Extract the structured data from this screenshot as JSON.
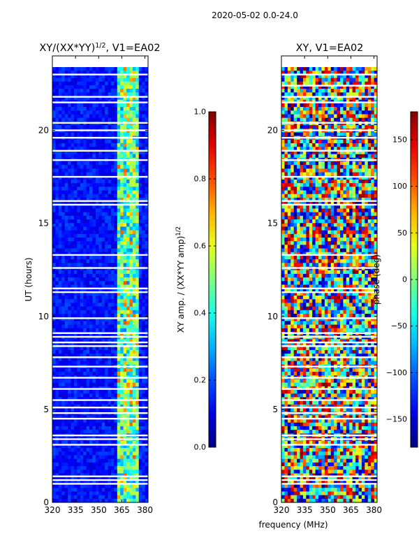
{
  "chart_data": {
    "suptitle": "2020-05-02 0.0-24.0",
    "shared_xlabel": "frequency (MHz)",
    "panels": [
      {
        "type": "heatmap",
        "title": "XY/(XX*YY)^{1/2}, V1=EA02",
        "title_main": "XY/(XX*YY)",
        "title_sup": "1/2",
        "title_tail": ", V1=EA02",
        "xlabel": "",
        "ylabel": "UT (hours)",
        "xlim": [
          320,
          382
        ],
        "ylim": [
          0,
          24
        ],
        "xticks": [
          320,
          335,
          350,
          365,
          380
        ],
        "yticks": [
          0,
          5,
          10,
          15,
          20
        ],
        "colormap": "jet",
        "blank_rows_hours": [
          23.0,
          21.8,
          21.5,
          20.4,
          20.0,
          19.6,
          18.9,
          18.4,
          17.5,
          16.2,
          16.0,
          13.3,
          12.6,
          11.5,
          11.3,
          9.9,
          9.1,
          8.9,
          8.6,
          8.4,
          7.8,
          7.3,
          6.7,
          6.1,
          5.5,
          5.1,
          4.8,
          4.5,
          3.6,
          3.4,
          3.1,
          1.4,
          1.2,
          1.0
        ],
        "colorbar": {
          "label": "XY amp. / (XX*YY amp)^{1/2}",
          "label_main": "XY amp. / (XX*YY amp)",
          "label_sup": "1/2",
          "min": 0.0,
          "max": 1.0,
          "ticks": [
            0.0,
            0.2,
            0.4,
            0.6,
            0.8,
            1.0
          ],
          "tick_labels": [
            "0.0",
            "0.2",
            "0.4",
            "0.6",
            "0.8",
            "1.0"
          ]
        }
      },
      {
        "type": "heatmap",
        "title": "XY, V1=EA02",
        "xlabel": "frequency (MHz)",
        "ylabel": "",
        "xlim": [
          320,
          382
        ],
        "ylim": [
          0,
          24
        ],
        "xticks": [
          320,
          335,
          350,
          365,
          380
        ],
        "yticks": [
          0,
          5,
          10,
          15,
          20
        ],
        "colormap": "jet",
        "blank_rows_hours": [
          23.0,
          22.4,
          21.8,
          21.5,
          20.4,
          20.0,
          19.6,
          18.9,
          18.4,
          17.5,
          16.2,
          16.0,
          13.3,
          12.6,
          11.5,
          11.3,
          9.9,
          9.1,
          8.9,
          8.6,
          8.4,
          7.8,
          7.3,
          6.7,
          6.1,
          5.5,
          5.1,
          4.8,
          4.5,
          3.6,
          3.4,
          3.1,
          1.4,
          1.2,
          1.0
        ],
        "colorbar": {
          "label": "phase (deg)",
          "min": -180,
          "max": 180,
          "ticks": [
            -150,
            -100,
            -50,
            0,
            50,
            100,
            150
          ],
          "tick_labels": [
            "−150",
            "−100",
            "−50",
            "0",
            "50",
            "100",
            "150"
          ]
        }
      }
    ]
  }
}
